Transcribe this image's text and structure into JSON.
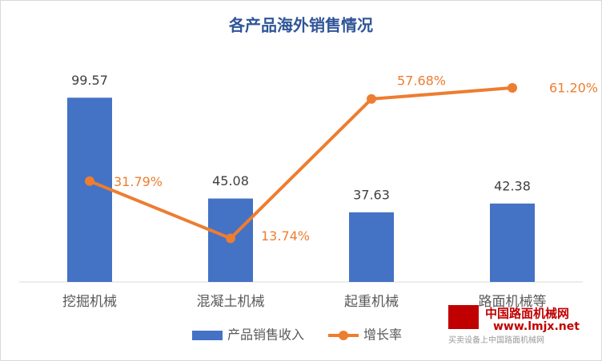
{
  "chart_data": {
    "type": "bar",
    "title": "各产品海外销售情况",
    "categories": [
      "挖掘机械",
      "混凝土机械",
      "起重机械",
      "路面机械等"
    ],
    "series": [
      {
        "name": "产品销售收入",
        "type": "bar",
        "color": "#4472c4",
        "values": [
          99.57,
          45.08,
          37.63,
          42.38
        ]
      },
      {
        "name": "增长率",
        "type": "line",
        "axis": "y2",
        "color": "#ed7d31",
        "values": [
          31.79,
          13.74,
          57.68,
          61.2
        ],
        "value_labels": [
          "31.79%",
          "13.74%",
          "57.68%",
          "61.20%"
        ]
      }
    ],
    "ylim": [
      0,
      120
    ],
    "y2lim": [
      0,
      70
    ],
    "legend": "bottom"
  },
  "watermark": {
    "line1": "中国路面机械网",
    "line2": "www.lmjx.net",
    "line3": "买卖设备上中国路面机械网"
  }
}
